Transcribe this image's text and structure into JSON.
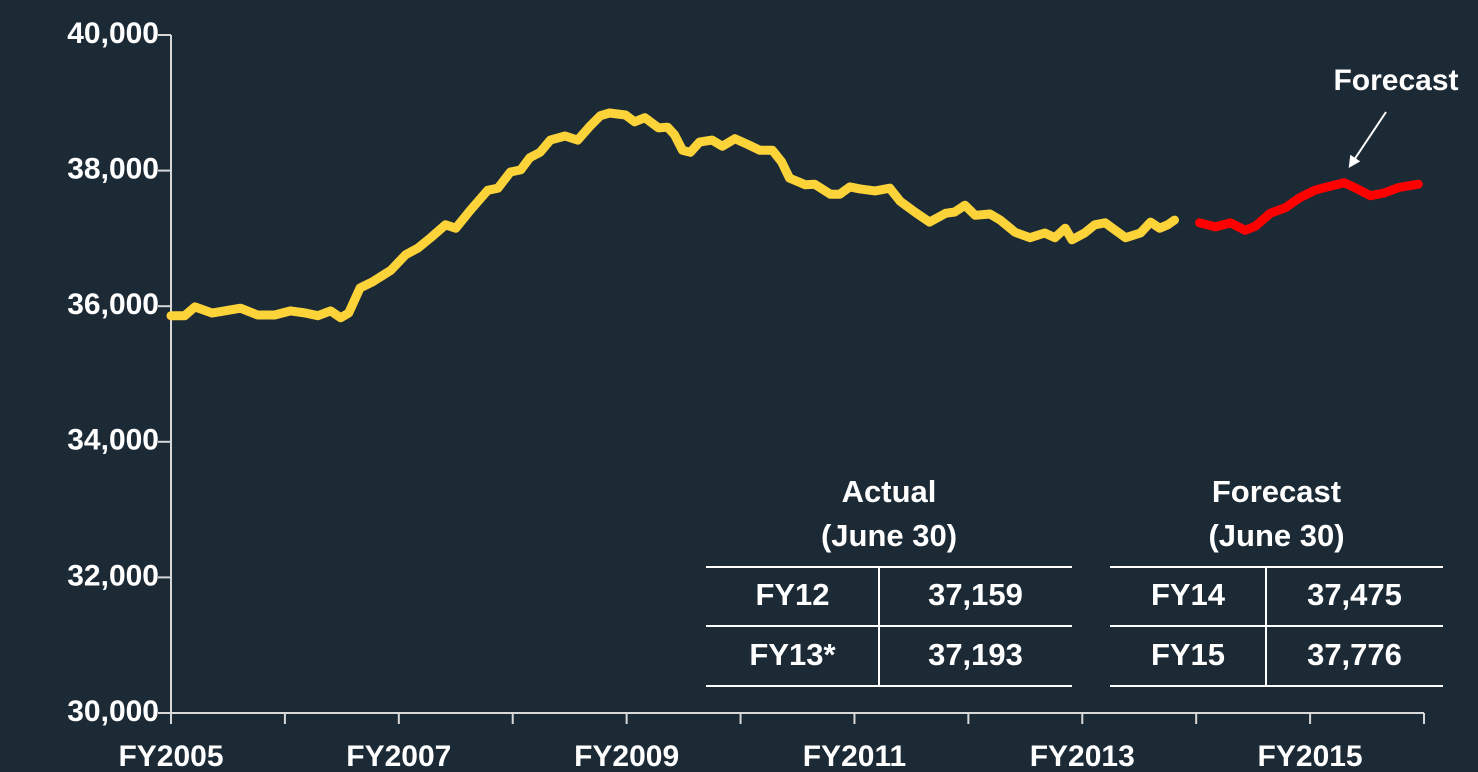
{
  "chart_data": {
    "type": "line",
    "annotation": "Forecast",
    "xlim": [
      2005,
      2016
    ],
    "xticks": [
      {
        "value": 2005,
        "label": "FY2005"
      },
      {
        "value": 2006,
        "label": null
      },
      {
        "value": 2007,
        "label": "FY2007"
      },
      {
        "value": 2008,
        "label": null
      },
      {
        "value": 2009,
        "label": "FY2009"
      },
      {
        "value": 2010,
        "label": null
      },
      {
        "value": 2011,
        "label": "FY2011"
      },
      {
        "value": 2012,
        "label": null
      },
      {
        "value": 2013,
        "label": "FY2013"
      },
      {
        "value": 2014,
        "label": null
      },
      {
        "value": 2015,
        "label": "FY2015"
      },
      {
        "value": 2016,
        "label": null
      }
    ],
    "ylim": [
      30000,
      40000
    ],
    "yticks": [
      {
        "value": 30000,
        "label": "30,000"
      },
      {
        "value": 32000,
        "label": "32,000"
      },
      {
        "value": 34000,
        "label": "34,000"
      },
      {
        "value": 36000,
        "label": "36,000"
      },
      {
        "value": 38000,
        "label": "38,000"
      },
      {
        "value": 40000,
        "label": "40,000"
      }
    ],
    "series": [
      {
        "color": "#fdd33a",
        "x": [
          2005.0,
          2005.12,
          2005.21,
          2005.36,
          2005.61,
          2005.76,
          2005.91,
          2006.05,
          2006.18,
          2006.29,
          2006.4,
          2006.49,
          2006.56,
          2006.66,
          2006.77,
          2006.93,
          2007.06,
          2007.17,
          2007.28,
          2007.41,
          2007.5,
          2007.63,
          2007.78,
          2007.87,
          2007.98,
          2008.07,
          2008.15,
          2008.24,
          2008.33,
          2008.46,
          2008.57,
          2008.68,
          2008.77,
          2008.85,
          2008.99,
          2009.07,
          2009.16,
          2009.28,
          2009.36,
          2009.42,
          2009.49,
          2009.56,
          2009.64,
          2009.75,
          2009.84,
          2009.95,
          2010.07,
          2010.17,
          2010.28,
          2010.36,
          2010.43,
          2010.57,
          2010.65,
          2010.79,
          2010.87,
          2010.96,
          2011.05,
          2011.18,
          2011.31,
          2011.4,
          2011.53,
          2011.66,
          2011.8,
          2011.88,
          2011.97,
          2012.06,
          2012.19,
          2012.28,
          2012.41,
          2012.54,
          2012.67,
          2012.76,
          2012.85,
          2012.91,
          2013.02,
          2013.11,
          2013.2,
          2013.29,
          2013.38,
          2013.51,
          2013.6,
          2013.68,
          2013.75,
          2013.81
        ],
        "values": [
          35860,
          35860,
          35990,
          35900,
          35970,
          35870,
          35870,
          35930,
          35900,
          35860,
          35930,
          35830,
          35900,
          36270,
          36360,
          36530,
          36760,
          36860,
          37010,
          37200,
          37150,
          37420,
          37710,
          37740,
          37980,
          38010,
          38190,
          38270,
          38450,
          38510,
          38450,
          38660,
          38810,
          38850,
          38820,
          38720,
          38780,
          38630,
          38640,
          38530,
          38300,
          38270,
          38420,
          38450,
          38360,
          38470,
          38380,
          38300,
          38300,
          38130,
          37890,
          37790,
          37800,
          37650,
          37650,
          37760,
          37730,
          37700,
          37740,
          37550,
          37390,
          37240,
          37370,
          37390,
          37490,
          37340,
          37360,
          37270,
          37090,
          37010,
          37080,
          37010,
          37150,
          36980,
          37080,
          37200,
          37230,
          37120,
          37010,
          37080,
          37240,
          37150,
          37200,
          37270
        ]
      },
      {
        "color": "#ff0000",
        "x": [
          2014.03,
          2014.17,
          2014.3,
          2014.43,
          2014.52,
          2014.65,
          2014.78,
          2014.91,
          2015.04,
          2015.13,
          2015.3,
          2015.39,
          2015.53,
          2015.65,
          2015.78,
          2015.95
        ],
        "values": [
          37230,
          37170,
          37230,
          37120,
          37180,
          37370,
          37450,
          37600,
          37710,
          37750,
          37820,
          37750,
          37630,
          37670,
          37750,
          37800
        ]
      }
    ]
  },
  "tables": [
    {
      "title": [
        "Actual",
        "(June 30)"
      ],
      "rows": [
        [
          "FY12",
          "37,159"
        ],
        [
          "FY13*",
          "37,193"
        ]
      ]
    },
    {
      "title": [
        "Forecast",
        "(June 30)"
      ],
      "rows": [
        [
          "FY14",
          "37,475"
        ],
        [
          "FY15",
          "37,776"
        ]
      ]
    }
  ]
}
